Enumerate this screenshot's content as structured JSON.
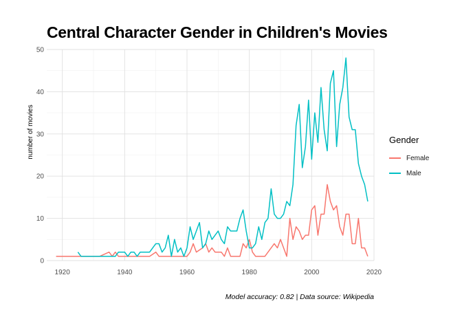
{
  "chart_data": {
    "type": "line",
    "title": "Central Character Gender in Children's Movies",
    "ylabel": "number of movies",
    "xlabel": "",
    "caption": "Model accuracy: 0.82 | Data source: Wikipedia",
    "xlim": [
      1915,
      2020
    ],
    "ylim": [
      0,
      50
    ],
    "x_ticks": [
      1920,
      1940,
      1960,
      1980,
      2000,
      2020
    ],
    "y_ticks": [
      0,
      10,
      20,
      30,
      40,
      50
    ],
    "grid": true,
    "legend": {
      "title": "Gender",
      "position": "right"
    },
    "series": [
      {
        "name": "Female",
        "color": "#F8766D",
        "points": [
          [
            1918,
            1
          ],
          [
            1922,
            1
          ],
          [
            1925,
            1
          ],
          [
            1928,
            1
          ],
          [
            1932,
            1
          ],
          [
            1935,
            2
          ],
          [
            1936,
            1
          ],
          [
            1937,
            2
          ],
          [
            1938,
            1
          ],
          [
            1940,
            1
          ],
          [
            1942,
            1
          ],
          [
            1945,
            1
          ],
          [
            1948,
            1
          ],
          [
            1950,
            2
          ],
          [
            1951,
            1
          ],
          [
            1953,
            1
          ],
          [
            1955,
            1
          ],
          [
            1957,
            1
          ],
          [
            1959,
            1
          ],
          [
            1960,
            1
          ],
          [
            1961,
            2
          ],
          [
            1962,
            4
          ],
          [
            1963,
            2
          ],
          [
            1964,
            2.5
          ],
          [
            1965,
            3
          ],
          [
            1966,
            4
          ],
          [
            1967,
            2
          ],
          [
            1968,
            3
          ],
          [
            1969,
            2
          ],
          [
            1970,
            2
          ],
          [
            1971,
            2
          ],
          [
            1972,
            1
          ],
          [
            1973,
            3
          ],
          [
            1974,
            1
          ],
          [
            1976,
            1
          ],
          [
            1977,
            1
          ],
          [
            1978,
            4
          ],
          [
            1979,
            3
          ],
          [
            1980,
            5
          ],
          [
            1981,
            2
          ],
          [
            1982,
            1
          ],
          [
            1983,
            1
          ],
          [
            1984,
            1
          ],
          [
            1985,
            1
          ],
          [
            1986,
            2
          ],
          [
            1987,
            3
          ],
          [
            1988,
            4
          ],
          [
            1989,
            3
          ],
          [
            1990,
            5
          ],
          [
            1991,
            3
          ],
          [
            1992,
            1
          ],
          [
            1993,
            10
          ],
          [
            1994,
            5
          ],
          [
            1995,
            8
          ],
          [
            1996,
            7
          ],
          [
            1997,
            5
          ],
          [
            1998,
            6
          ],
          [
            1999,
            6
          ],
          [
            2000,
            12
          ],
          [
            2001,
            13
          ],
          [
            2002,
            6
          ],
          [
            2003,
            11
          ],
          [
            2004,
            11
          ],
          [
            2005,
            18
          ],
          [
            2006,
            14
          ],
          [
            2007,
            12
          ],
          [
            2008,
            13
          ],
          [
            2009,
            8
          ],
          [
            2010,
            6
          ],
          [
            2011,
            11
          ],
          [
            2012,
            11
          ],
          [
            2013,
            4
          ],
          [
            2014,
            4
          ],
          [
            2015,
            10
          ],
          [
            2016,
            3
          ],
          [
            2017,
            3
          ],
          [
            2018,
            1
          ]
        ]
      },
      {
        "name": "Male",
        "color": "#00BFC4",
        "points": [
          [
            1925,
            2
          ],
          [
            1926,
            1
          ],
          [
            1928,
            1
          ],
          [
            1930,
            1
          ],
          [
            1932,
            1
          ],
          [
            1934,
            1
          ],
          [
            1935,
            1
          ],
          [
            1936,
            1
          ],
          [
            1937,
            1
          ],
          [
            1938,
            2
          ],
          [
            1939,
            2
          ],
          [
            1940,
            2
          ],
          [
            1941,
            1
          ],
          [
            1942,
            2
          ],
          [
            1943,
            2
          ],
          [
            1944,
            1
          ],
          [
            1945,
            2
          ],
          [
            1946,
            2
          ],
          [
            1948,
            2
          ],
          [
            1949,
            3
          ],
          [
            1950,
            4
          ],
          [
            1951,
            4
          ],
          [
            1952,
            2
          ],
          [
            1953,
            3
          ],
          [
            1954,
            6
          ],
          [
            1955,
            1
          ],
          [
            1956,
            5
          ],
          [
            1957,
            2
          ],
          [
            1958,
            3
          ],
          [
            1959,
            1
          ],
          [
            1960,
            3
          ],
          [
            1961,
            8
          ],
          [
            1962,
            5
          ],
          [
            1963,
            7
          ],
          [
            1964,
            9
          ],
          [
            1965,
            3
          ],
          [
            1966,
            4
          ],
          [
            1967,
            7
          ],
          [
            1968,
            5
          ],
          [
            1969,
            6
          ],
          [
            1970,
            7
          ],
          [
            1971,
            5
          ],
          [
            1972,
            4
          ],
          [
            1973,
            8
          ],
          [
            1974,
            7
          ],
          [
            1975,
            7
          ],
          [
            1976,
            7
          ],
          [
            1977,
            10
          ],
          [
            1978,
            12
          ],
          [
            1979,
            7
          ],
          [
            1980,
            3
          ],
          [
            1981,
            3
          ],
          [
            1982,
            4
          ],
          [
            1983,
            8
          ],
          [
            1984,
            5
          ],
          [
            1985,
            9
          ],
          [
            1986,
            10
          ],
          [
            1987,
            17
          ],
          [
            1988,
            11
          ],
          [
            1989,
            10
          ],
          [
            1990,
            10
          ],
          [
            1991,
            11
          ],
          [
            1992,
            14
          ],
          [
            1993,
            13
          ],
          [
            1994,
            18
          ],
          [
            1995,
            32
          ],
          [
            1996,
            37
          ],
          [
            1997,
            22
          ],
          [
            1998,
            27
          ],
          [
            1999,
            38
          ],
          [
            2000,
            24
          ],
          [
            2001,
            35
          ],
          [
            2002,
            28
          ],
          [
            2003,
            41
          ],
          [
            2004,
            31
          ],
          [
            2005,
            26
          ],
          [
            2006,
            42
          ],
          [
            2007,
            45
          ],
          [
            2008,
            27
          ],
          [
            2009,
            37
          ],
          [
            2010,
            41
          ],
          [
            2011,
            48
          ],
          [
            2012,
            34
          ],
          [
            2013,
            31
          ],
          [
            2014,
            31
          ],
          [
            2015,
            23
          ],
          [
            2016,
            20
          ],
          [
            2017,
            18
          ],
          [
            2018,
            14
          ]
        ]
      }
    ]
  }
}
